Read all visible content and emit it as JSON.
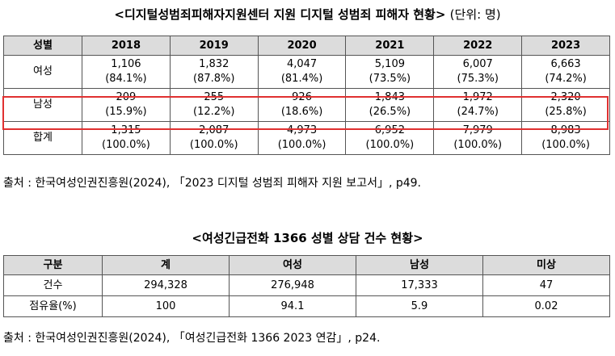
{
  "table1": {
    "title": "<디지털성범죄피해자지원센터 지원 디지털 성범죄 피해자 현황>",
    "unit": "(단위: 명)",
    "headers": [
      "성별",
      "2018",
      "2019",
      "2020",
      "2021",
      "2022",
      "2023"
    ],
    "rows": [
      {
        "label": "여성",
        "cells": [
          [
            "1,106",
            "(84.1%)"
          ],
          [
            "1,832",
            "(87.8%)"
          ],
          [
            "4,047",
            "(81.4%)"
          ],
          [
            "5,109",
            "(73.5%)"
          ],
          [
            "6,007",
            "(75.3%)"
          ],
          [
            "6,663",
            "(74.2%)"
          ]
        ]
      },
      {
        "label": "남성",
        "cells": [
          [
            "209",
            "(15.9%)"
          ],
          [
            "255",
            "(12.2%)"
          ],
          [
            "926",
            "(18.6%)"
          ],
          [
            "1,843",
            "(26.5%)"
          ],
          [
            "1,972",
            "(24.7%)"
          ],
          [
            "2,320",
            "(25.8%)"
          ]
        ]
      },
      {
        "label": "합계",
        "cells": [
          [
            "1,315",
            "(100.0%)"
          ],
          [
            "2,087",
            "(100.0%)"
          ],
          [
            "4,973",
            "(100.0%)"
          ],
          [
            "6,952",
            "(100.0%)"
          ],
          [
            "7,979",
            "(100.0%)"
          ],
          [
            "8,983",
            "(100.0%)"
          ]
        ]
      }
    ],
    "highlight_color": "#e03030",
    "source": "출처 : 한국여성인권진흥원(2024), 「2023 디지털 성범죄 피해자 지원 보고서」, p49."
  },
  "table2": {
    "title": "<여성긴급전화 1366 성별 상담 건수 현황>",
    "headers": [
      "구분",
      "계",
      "여성",
      "남성",
      "미상"
    ],
    "rows": [
      {
        "label": "건수",
        "cells": [
          "294,328",
          "276,948",
          "17,333",
          "47"
        ]
      },
      {
        "label": "점유율(%)",
        "cells": [
          "100",
          "94.1",
          "5.9",
          "0.02"
        ]
      }
    ],
    "source": "출처 : 한국여성인권진흥원(2024), 「여성긴급전화 1366 2023 연감」, p24."
  }
}
